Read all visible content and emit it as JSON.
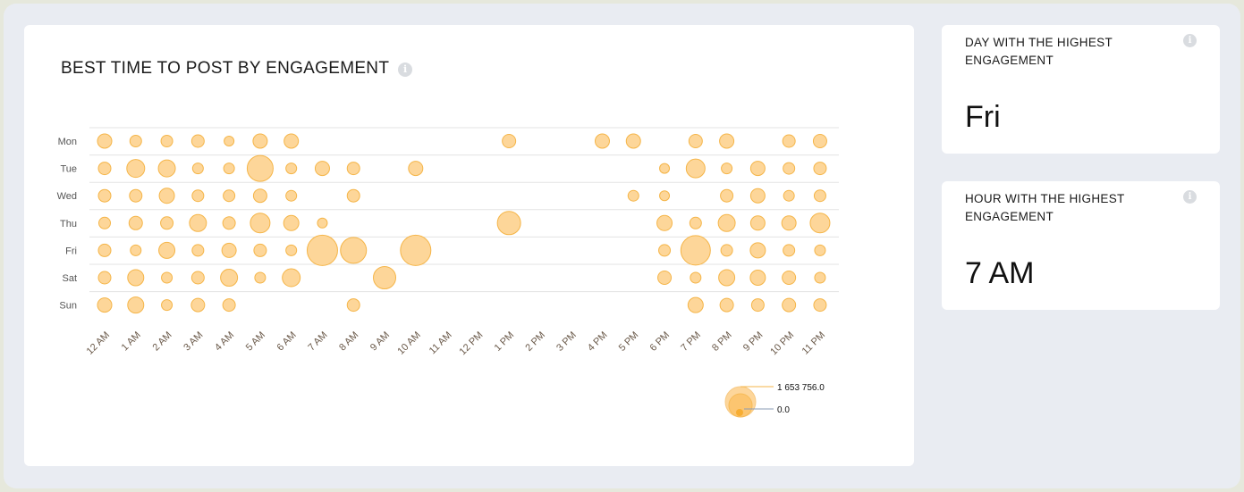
{
  "main": {
    "title": "BEST TIME TO POST BY ENGAGEMENT",
    "info_icon": "info-icon"
  },
  "kpis": [
    {
      "label": "DAY WITH THE HIGHEST ENGAGEMENT",
      "value": "Fri"
    },
    {
      "label": "HOUR WITH THE HIGHEST ENGAGEMENT",
      "value": "7 AM"
    }
  ],
  "chart_data": {
    "type": "scatter",
    "subtype": "bubble",
    "title": "BEST TIME TO POST BY ENGAGEMENT",
    "x_categories": [
      "12 AM",
      "1 AM",
      "2 AM",
      "3 AM",
      "4 AM",
      "5 AM",
      "6 AM",
      "7 AM",
      "8 AM",
      "9 AM",
      "10 AM",
      "11 AM",
      "12 PM",
      "1 PM",
      "2 PM",
      "3 PM",
      "4 PM",
      "5 PM",
      "6 PM",
      "7 PM",
      "8 PM",
      "9 PM",
      "10 PM",
      "11 PM"
    ],
    "y_categories": [
      "Mon",
      "Tue",
      "Wed",
      "Thu",
      "Fri",
      "Sat",
      "Sun"
    ],
    "series": [
      {
        "name": "Mon",
        "values": [
          366000,
          242000,
          242000,
          280000,
          173000,
          366000,
          366000,
          null,
          null,
          null,
          null,
          null,
          null,
          322000,
          null,
          null,
          366000,
          366000,
          null,
          322000,
          366000,
          null,
          280000,
          322000
        ]
      },
      {
        "name": "Tue",
        "values": [
          280000,
          572000,
          516000,
          206000,
          206000,
          1203000,
          206000,
          366000,
          280000,
          null,
          366000,
          null,
          null,
          null,
          null,
          null,
          null,
          null,
          173000,
          631000,
          206000,
          366000,
          242000,
          280000
        ]
      },
      {
        "name": "Wed",
        "values": [
          280000,
          280000,
          413000,
          242000,
          242000,
          322000,
          206000,
          null,
          280000,
          null,
          null,
          null,
          null,
          null,
          null,
          null,
          null,
          206000,
          173000,
          null,
          280000,
          366000,
          206000,
          242000
        ]
      },
      {
        "name": "Thu",
        "values": [
          242000,
          322000,
          280000,
          516000,
          280000,
          693000,
          413000,
          173000,
          null,
          null,
          null,
          null,
          null,
          967000,
          null,
          null,
          null,
          null,
          413000,
          242000,
          516000,
          366000,
          366000,
          693000
        ]
      },
      {
        "name": "Fri",
        "values": [
          280000,
          206000,
          463000,
          242000,
          366000,
          280000,
          206000,
          1653756,
          1203000,
          null,
          1653756,
          null,
          null,
          null,
          null,
          null,
          null,
          null,
          242000,
          1557000,
          242000,
          413000,
          242000,
          206000
        ]
      },
      {
        "name": "Sat",
        "values": [
          280000,
          463000,
          206000,
          280000,
          516000,
          206000,
          572000,
          null,
          null,
          894000,
          null,
          null,
          null,
          null,
          null,
          null,
          null,
          null,
          322000,
          206000,
          463000,
          413000,
          322000,
          206000
        ]
      },
      {
        "name": "Sun",
        "values": [
          366000,
          463000,
          206000,
          322000,
          280000,
          null,
          null,
          null,
          280000,
          null,
          null,
          null,
          null,
          null,
          null,
          null,
          null,
          null,
          null,
          413000,
          322000,
          280000,
          322000,
          280000
        ]
      }
    ],
    "size_legend": {
      "max_label": "1 653 756.0",
      "min_label": "0.0",
      "max": 1653756,
      "min": 0
    },
    "colors": {
      "bubble_fill": "#fdd699",
      "bubble_stroke": "#f5b548",
      "grid": "#e3e3e3"
    },
    "grid": true
  }
}
